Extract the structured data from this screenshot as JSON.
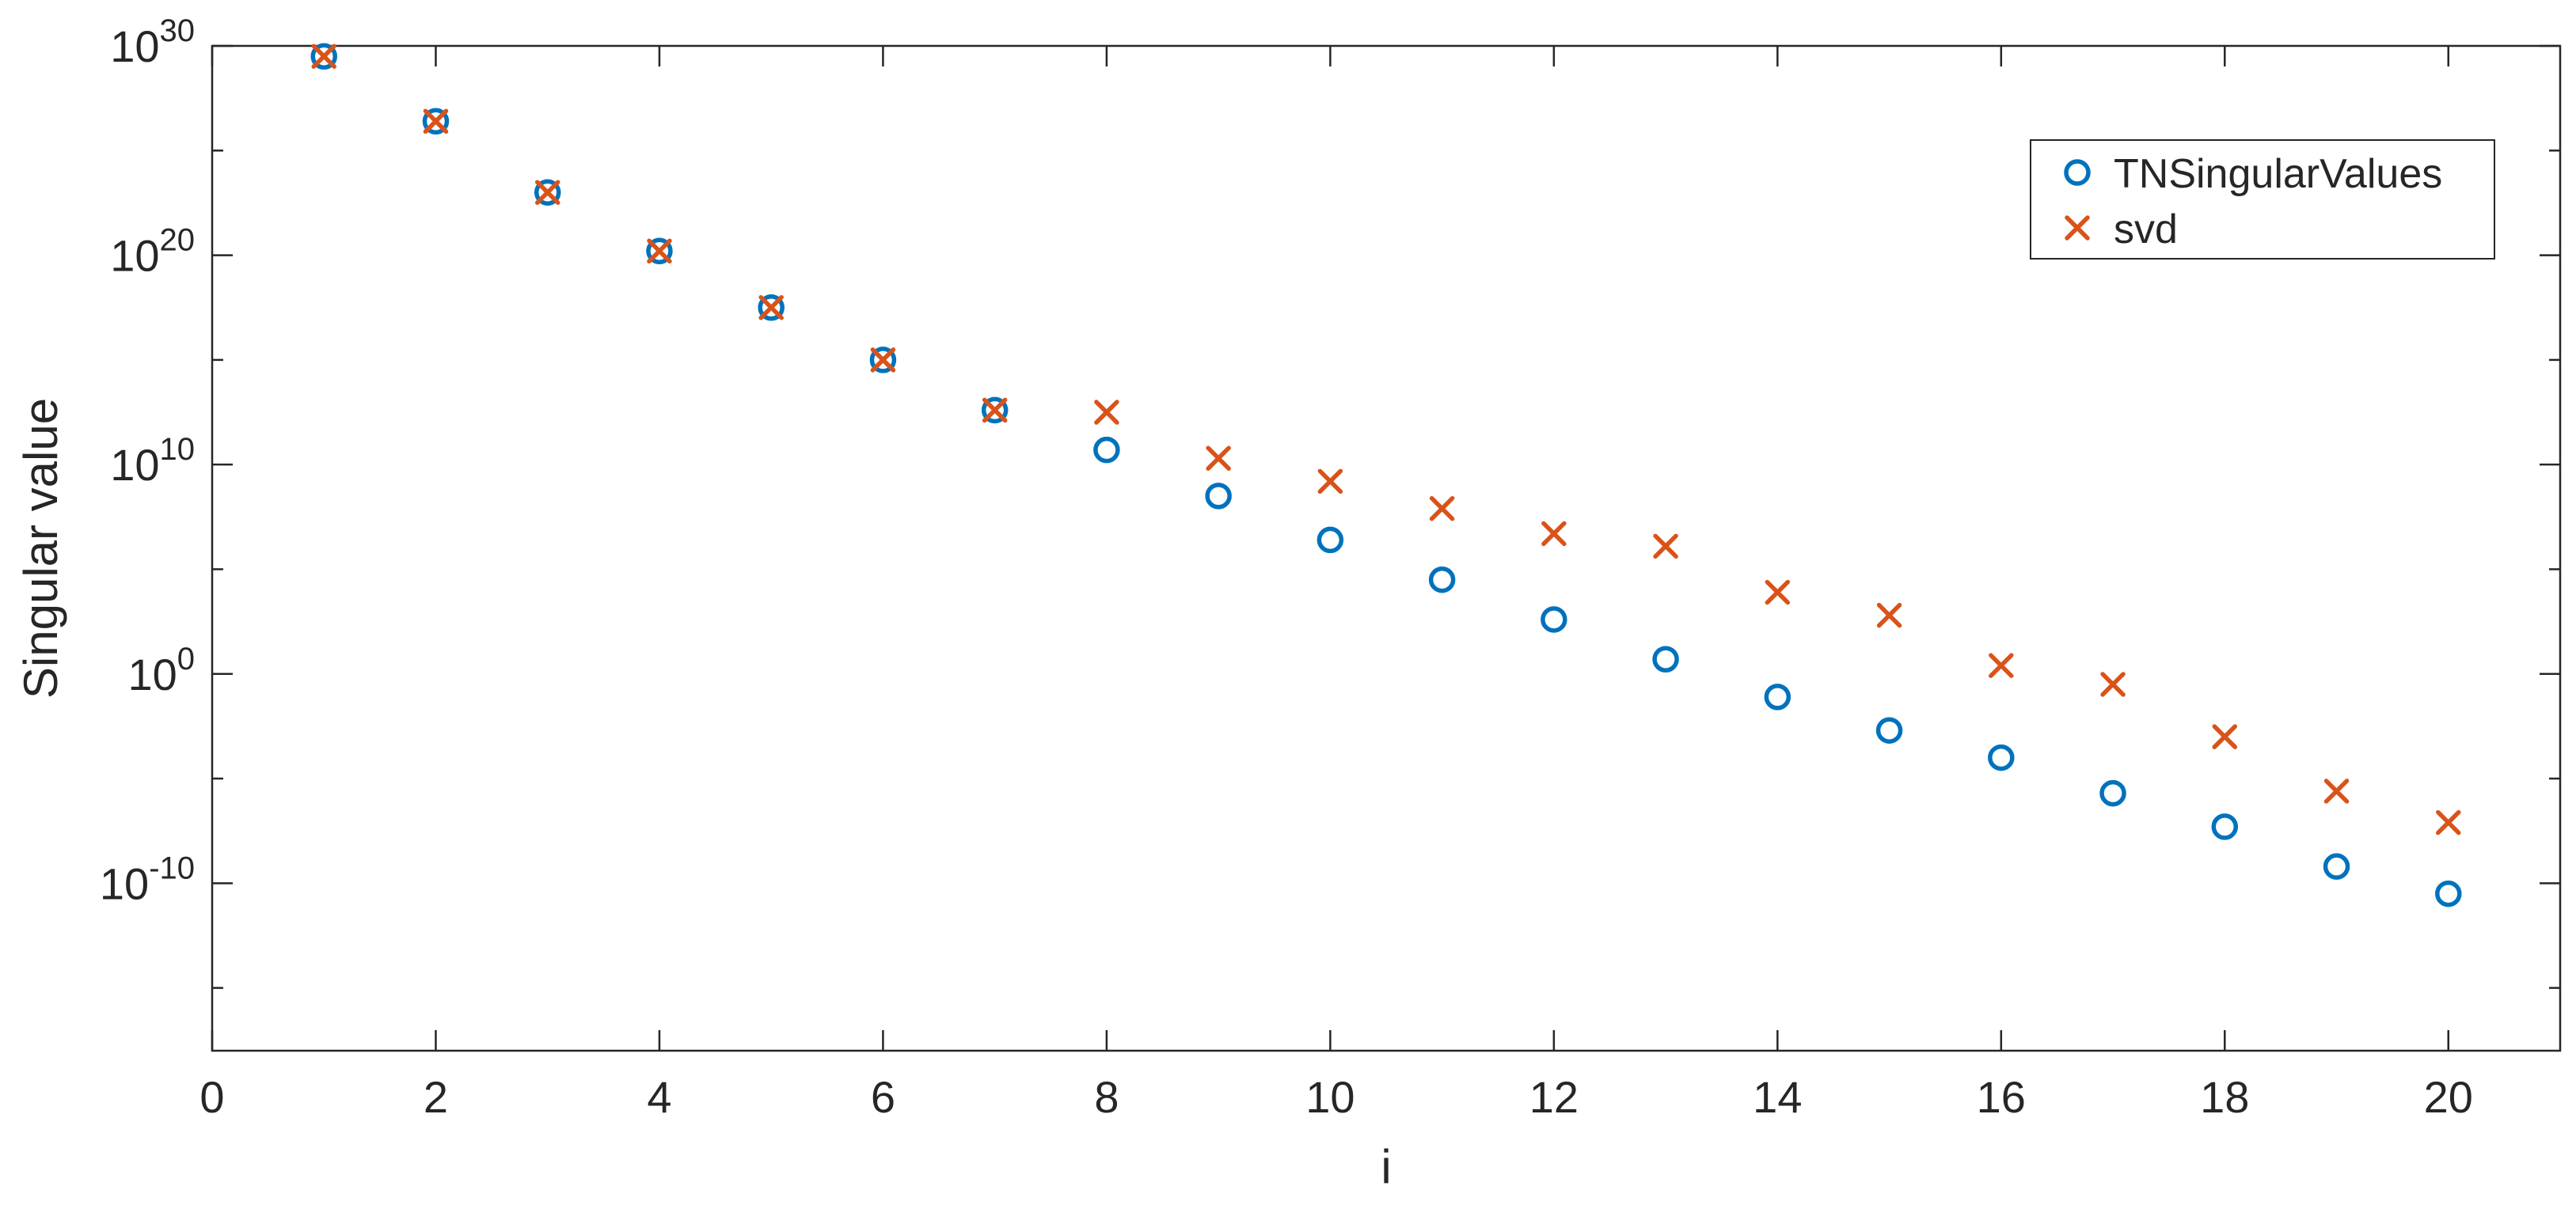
{
  "chart_data": {
    "type": "scatter",
    "xlabel": "i",
    "ylabel": "Singular value",
    "xlim": [
      0,
      21
    ],
    "ylim_log10": [
      -18,
      30
    ],
    "y_scale": "log",
    "x_ticks": [
      0,
      2,
      4,
      6,
      8,
      10,
      12,
      14,
      16,
      18,
      20
    ],
    "y_ticks": [
      {
        "exp": -10,
        "base": "10",
        "sup": "-10"
      },
      {
        "exp": 0,
        "base": "10",
        "sup": "0"
      },
      {
        "exp": 10,
        "base": "10",
        "sup": "10"
      },
      {
        "exp": 20,
        "base": "10",
        "sup": "20"
      },
      {
        "exp": 30,
        "base": "10",
        "sup": "30"
      }
    ],
    "y_minor_ticks_log10": [
      -15,
      -5,
      5,
      15,
      25
    ],
    "grid": false,
    "legend_position": "top-right",
    "series": [
      {
        "name": "TNSingularValues",
        "marker": "circle",
        "color": "#0072BD",
        "x": [
          1,
          2,
          3,
          4,
          5,
          6,
          7,
          8,
          9,
          10,
          11,
          12,
          13,
          14,
          15,
          16,
          17,
          18,
          19,
          20
        ],
        "y_log10": [
          29.5,
          26.4,
          23.0,
          20.2,
          17.5,
          15.0,
          12.6,
          10.7,
          8.5,
          6.4,
          4.5,
          2.6,
          0.7,
          -1.1,
          -2.7,
          -4.0,
          -5.7,
          -7.3,
          -9.2,
          -10.5
        ]
      },
      {
        "name": "svd",
        "marker": "x",
        "color": "#D95319",
        "x": [
          1,
          2,
          3,
          4,
          5,
          6,
          7,
          8,
          9,
          10,
          11,
          12,
          13,
          14,
          15,
          16,
          17,
          18,
          19,
          20
        ],
        "y_log10": [
          29.5,
          26.4,
          23.0,
          20.2,
          17.5,
          15.0,
          12.6,
          12.5,
          10.3,
          9.2,
          7.9,
          6.7,
          6.1,
          3.9,
          2.8,
          0.4,
          -0.5,
          -3.0,
          -5.6,
          -7.1
        ]
      }
    ]
  }
}
